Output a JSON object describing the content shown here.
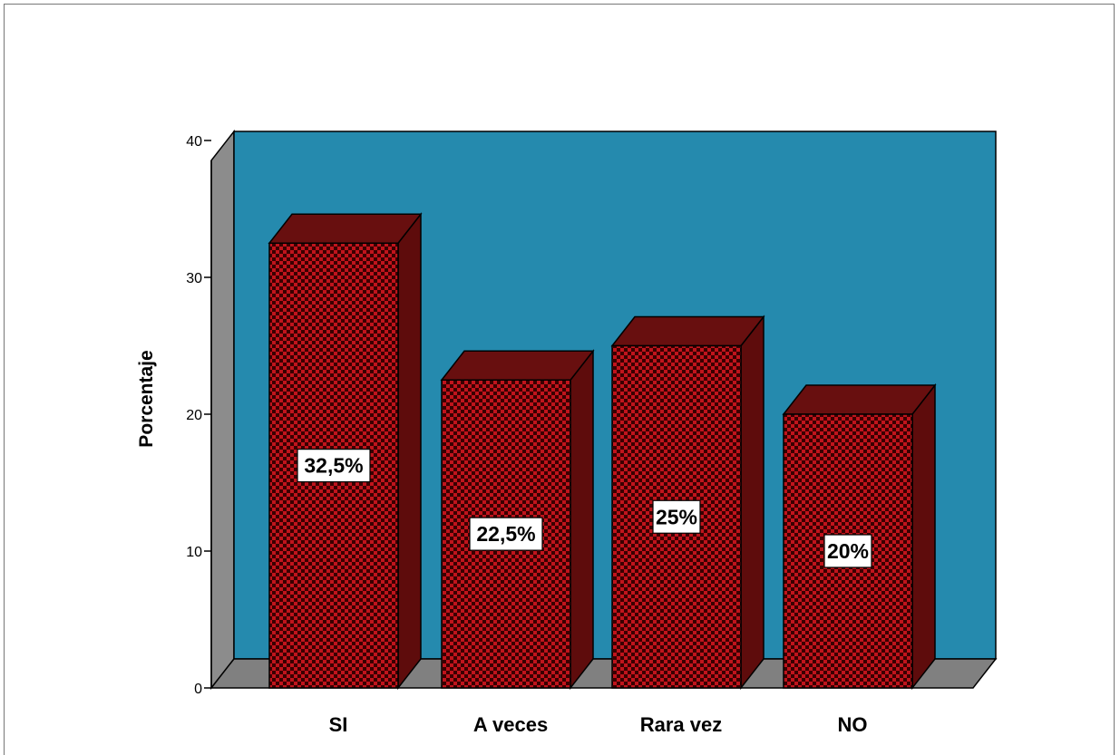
{
  "chart_data": {
    "type": "bar",
    "categories": [
      "SI",
      "A veces",
      "Rara vez",
      "NO"
    ],
    "values": [
      32.5,
      22.5,
      25,
      20
    ],
    "data_labels": [
      "32,5%",
      "22,5%",
      "25%",
      "20%"
    ],
    "title": "",
    "xlabel": "",
    "ylabel": "Porcentaje",
    "ylim": [
      0,
      40
    ],
    "yticks": [
      "0",
      "10",
      "20",
      "30",
      "40"
    ],
    "grid": false,
    "style": "3d",
    "colors": {
      "wall": "#258AAE",
      "side_wall": "#8C8C8C",
      "floor": "#808080",
      "bar_front_dark": "#3a0000",
      "bar_front_light": "#c0141c",
      "bar_side": "#5e0c0c",
      "bar_top": "#680f0f"
    }
  }
}
